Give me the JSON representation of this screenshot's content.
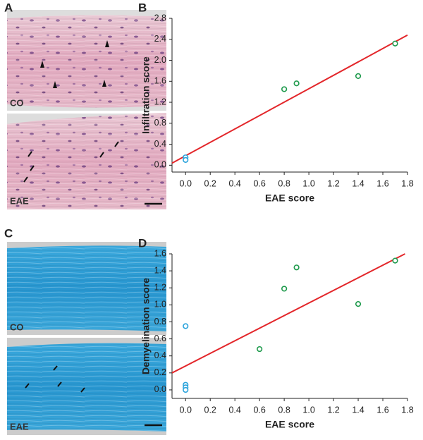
{
  "panels": {
    "A": {
      "label": "A",
      "top_label": "CO",
      "bottom_label": "EAE"
    },
    "C": {
      "label": "C",
      "top_label": "CO",
      "bottom_label": "EAE"
    }
  },
  "chart_data": [
    {
      "type": "scatter",
      "panel_label": "B",
      "xlabel": "EAE score",
      "ylabel": "Infiltration score",
      "xlim": [
        -0.11,
        1.8
      ],
      "ylim": [
        -0.13,
        2.8
      ],
      "xticks": [
        {
          "value": 0,
          "label": "0.0"
        },
        0.2,
        0.4,
        0.6,
        0.8,
        {
          "value": 1,
          "label": "1.0"
        },
        1.2,
        1.4,
        1.6,
        1.8
      ],
      "yticks": [
        {
          "value": 0,
          "label": "0.0"
        },
        0.4,
        0.8,
        1.2,
        1.6,
        {
          "value": 2,
          "label": "2.0"
        },
        2.4,
        2.8
      ],
      "series": [
        {
          "color": "#2aa3dc",
          "x": [
            0,
            0
          ],
          "y": [
            0.15,
            0.1
          ]
        },
        {
          "color": "#1e9a4c",
          "x": [
            0.8,
            0.9,
            1.4,
            1.7
          ],
          "y": [
            1.45,
            1.56,
            1.7,
            2.32
          ]
        }
      ],
      "fit_line": {
        "color": "#e3262a",
        "x": [
          -0.11,
          1.8
        ],
        "y": [
          0.04,
          2.48
        ]
      }
    },
    {
      "type": "scatter",
      "panel_label": "D",
      "xlabel": "EAE score",
      "ylabel": "Demyelination score",
      "xlim": [
        -0.11,
        1.8
      ],
      "ylim": [
        -0.1,
        1.6
      ],
      "xticks": [
        {
          "value": 0,
          "label": "0.0"
        },
        0.2,
        0.4,
        0.6,
        0.8,
        {
          "value": 1,
          "label": "1.0"
        },
        1.2,
        1.4,
        1.6,
        1.8
      ],
      "yticks": [
        {
          "value": 0,
          "label": "0.0"
        },
        0.2,
        0.4,
        0.6,
        0.8,
        {
          "value": 1,
          "label": "1.0"
        },
        1.2,
        1.4,
        1.6
      ],
      "series": [
        {
          "color": "#2aa3dc",
          "x": [
            0,
            0,
            0,
            0
          ],
          "y": [
            0.75,
            0.06,
            0.03,
            0.0
          ]
        },
        {
          "color": "#1e9a4c",
          "x": [
            0.6,
            0.8,
            0.9,
            1.4,
            1.7
          ],
          "y": [
            0.48,
            1.19,
            1.44,
            1.01,
            1.52
          ]
        }
      ],
      "fit_line": {
        "color": "#e3262a",
        "x": [
          -0.11,
          1.78
        ],
        "y": [
          0.2,
          1.6
        ]
      }
    }
  ]
}
